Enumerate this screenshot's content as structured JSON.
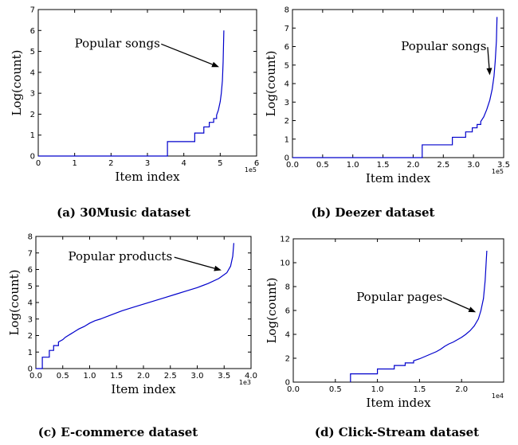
{
  "figure_captions": [
    "(a) 30Music dataset",
    "(b) Deezer dataset",
    "(c) E-commerce dataset",
    "(d) Click-Stream dataset"
  ],
  "chart_data": [
    {
      "type": "line",
      "caption": "(a) 30Music dataset",
      "xlabel": "Item index",
      "ylabel": "Log(count)",
      "x_multiplier": "1e5",
      "xlim": [
        0,
        6
      ],
      "ylim": [
        0,
        7
      ],
      "x_ticks": [
        0,
        1,
        2,
        3,
        4,
        5,
        6
      ],
      "x_tick_labels": [
        "0",
        "1",
        "2",
        "3",
        "4",
        "5",
        "6"
      ],
      "y_ticks": [
        0,
        1,
        2,
        3,
        4,
        5,
        6,
        7
      ],
      "y_tick_labels": [
        "0",
        "1",
        "2",
        "3",
        "4",
        "5",
        "6",
        "7"
      ],
      "grid": false,
      "line_color": "#0000cc",
      "series": [
        {
          "x": [
            0,
            3.55,
            3.55,
            4.3,
            4.3,
            4.55,
            4.55,
            4.7,
            4.7,
            4.82,
            4.82,
            4.9,
            4.9,
            4.95,
            5.0,
            5.03,
            5.06,
            5.08,
            5.1
          ],
          "y": [
            0,
            0,
            0.69,
            0.69,
            1.1,
            1.1,
            1.39,
            1.39,
            1.61,
            1.61,
            1.79,
            1.79,
            1.95,
            2.2,
            2.6,
            3.0,
            3.6,
            4.5,
            6.0
          ]
        }
      ],
      "annotations": [
        {
          "text": "Popular songs",
          "x": 1.0,
          "y": 5.2,
          "arrow_to": [
            4.97,
            4.25
          ]
        }
      ]
    },
    {
      "type": "line",
      "caption": "(b) Deezer dataset",
      "xlabel": "Item index",
      "ylabel": "Log(count)",
      "x_multiplier": "1e5",
      "xlim": [
        0,
        3.5
      ],
      "ylim": [
        0,
        8
      ],
      "x_ticks": [
        0,
        0.5,
        1.0,
        1.5,
        2.0,
        2.5,
        3.0,
        3.5
      ],
      "x_tick_labels": [
        "0.0",
        "0.5",
        "1.0",
        "1.5",
        "2.0",
        "2.5",
        "3.0",
        "3.5"
      ],
      "y_ticks": [
        0,
        1,
        2,
        3,
        4,
        5,
        6,
        7,
        8
      ],
      "y_tick_labels": [
        "0",
        "1",
        "2",
        "3",
        "4",
        "5",
        "6",
        "7",
        "8"
      ],
      "grid": false,
      "line_color": "#0000cc",
      "series": [
        {
          "x": [
            0,
            2.15,
            2.15,
            2.65,
            2.65,
            2.87,
            2.87,
            2.98,
            2.98,
            3.06,
            3.06,
            3.12,
            3.12,
            3.17,
            3.22,
            3.27,
            3.31,
            3.34,
            3.36,
            3.38,
            3.39
          ],
          "y": [
            0,
            0,
            0.69,
            0.69,
            1.1,
            1.1,
            1.39,
            1.39,
            1.61,
            1.61,
            1.79,
            1.79,
            1.95,
            2.2,
            2.6,
            3.1,
            3.7,
            4.4,
            5.2,
            6.3,
            7.6
          ]
        }
      ],
      "annotations": [
        {
          "text": "Popular songs",
          "x": 1.8,
          "y": 5.8,
          "arrow_to": [
            3.27,
            4.45
          ]
        }
      ]
    },
    {
      "type": "line",
      "caption": "(c) E-commerce dataset",
      "xlabel": "Item index",
      "ylabel": "Log(count)",
      "x_multiplier": "1e3",
      "xlim": [
        0,
        4.0
      ],
      "ylim": [
        0,
        8
      ],
      "x_ticks": [
        0,
        0.5,
        1.0,
        1.5,
        2.0,
        2.5,
        3.0,
        3.5,
        4.0
      ],
      "x_tick_labels": [
        "0.0",
        "0.5",
        "1.0",
        "1.5",
        "2.0",
        "2.5",
        "3.0",
        "3.5",
        "4.0"
      ],
      "y_ticks": [
        0,
        1,
        2,
        3,
        4,
        5,
        6,
        7,
        8
      ],
      "y_tick_labels": [
        "0",
        "1",
        "2",
        "3",
        "4",
        "5",
        "6",
        "7",
        "8"
      ],
      "grid": false,
      "line_color": "#0000cc",
      "series": [
        {
          "x": [
            0,
            0.12,
            0.12,
            0.25,
            0.25,
            0.33,
            0.33,
            0.42,
            0.42,
            0.5,
            0.55,
            0.6,
            0.65,
            0.7,
            0.75,
            0.8,
            0.9,
            1.0,
            1.1,
            1.2,
            1.4,
            1.6,
            1.8,
            2.0,
            2.2,
            2.4,
            2.6,
            2.8,
            3.0,
            3.2,
            3.4,
            3.55,
            3.62,
            3.66,
            3.68
          ],
          "y": [
            0,
            0,
            0.69,
            0.69,
            1.1,
            1.1,
            1.39,
            1.39,
            1.61,
            1.75,
            1.9,
            2.0,
            2.1,
            2.2,
            2.3,
            2.4,
            2.55,
            2.75,
            2.9,
            3.0,
            3.25,
            3.5,
            3.7,
            3.9,
            4.1,
            4.3,
            4.5,
            4.7,
            4.9,
            5.15,
            5.45,
            5.8,
            6.2,
            6.8,
            7.6
          ]
        }
      ],
      "annotations": [
        {
          "text": "Popular products",
          "x": 0.6,
          "y": 6.55,
          "arrow_to": [
            3.45,
            5.95
          ]
        }
      ]
    },
    {
      "type": "line",
      "caption": "(d) Click-Stream dataset",
      "xlabel": "Item index",
      "ylabel": "Log(count)",
      "x_multiplier": "1e4",
      "xlim": [
        0,
        2.5
      ],
      "ylim": [
        0,
        12
      ],
      "x_ticks": [
        0,
        0.5,
        1.0,
        1.5,
        2.0
      ],
      "x_tick_labels": [
        "0.0",
        "0.5",
        "1.0",
        "1.5",
        "2.0"
      ],
      "y_ticks": [
        0,
        2,
        4,
        6,
        8,
        10,
        12
      ],
      "y_tick_labels": [
        "0",
        "2",
        "4",
        "6",
        "8",
        "10",
        "12"
      ],
      "grid": false,
      "line_color": "#0000cc",
      "series": [
        {
          "x": [
            0.68,
            0.68,
            1.0,
            1.0,
            1.2,
            1.2,
            1.33,
            1.33,
            1.43,
            1.43,
            1.5,
            1.55,
            1.6,
            1.65,
            1.7,
            1.75,
            1.8,
            1.85,
            1.9,
            1.95,
            2.0,
            2.05,
            2.1,
            2.15,
            2.2,
            2.23,
            2.26,
            2.28,
            2.3
          ],
          "y": [
            0,
            0.69,
            0.69,
            1.1,
            1.1,
            1.39,
            1.39,
            1.61,
            1.61,
            1.79,
            1.95,
            2.1,
            2.25,
            2.4,
            2.55,
            2.75,
            3.0,
            3.2,
            3.35,
            3.55,
            3.75,
            4.0,
            4.3,
            4.7,
            5.3,
            6.0,
            7.0,
            8.5,
            11.0
          ]
        }
      ],
      "annotations": [
        {
          "text": "Popular pages",
          "x": 0.75,
          "y": 6.8,
          "arrow_to": [
            2.17,
            5.85
          ]
        }
      ]
    }
  ]
}
